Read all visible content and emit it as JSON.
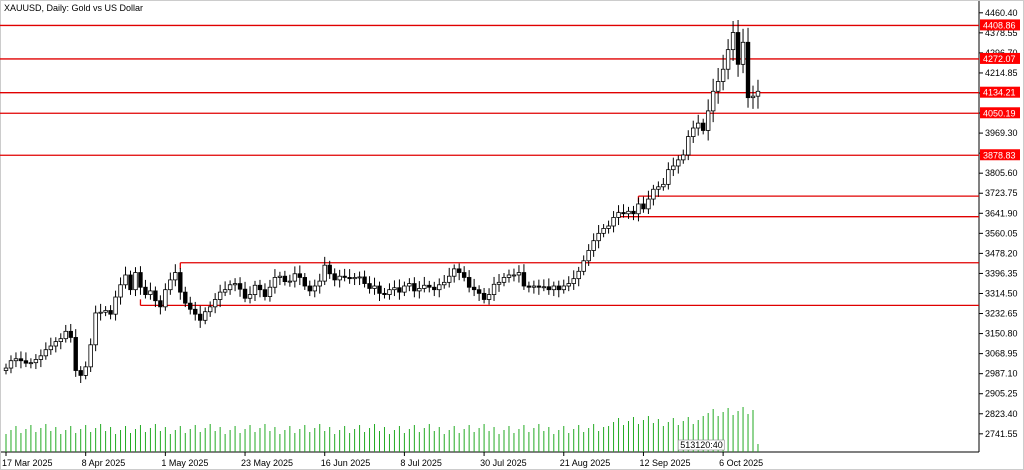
{
  "header": {
    "symbol": "XAUUSD, Daily:",
    "description": "Gold vs US Dollar"
  },
  "chart_data": {
    "type": "candlestick",
    "title": "XAUUSD, Daily:  Gold vs US Dollar",
    "ylim": [
      2700,
      4480
    ],
    "grid": false,
    "y_ticks": [
      4460.4,
      4378.55,
      4296.7,
      4214.85,
      4133.0,
      4051.15,
      3969.3,
      3887.45,
      3805.6,
      3723.75,
      3641.9,
      3560.05,
      3478.2,
      3396.35,
      3314.5,
      3232.65,
      3150.8,
      3068.95,
      2987.1,
      2905.25,
      2823.4,
      2741.55
    ],
    "y_tick_labels": [
      "4460.40",
      "4378.55",
      "4296.70",
      "4214.85",
      "4133.00",
      "4051.15",
      "3969.30",
      "3887.45",
      "3805.60",
      "3723.75",
      "3641.90",
      "3560.05",
      "3478.20",
      "3396.35",
      "3314.50",
      "3232.65",
      "3150.80",
      "3068.95",
      "2987.10",
      "2905.25",
      "2823.40",
      "2741.55"
    ],
    "x_tick_labels": [
      "17 Mar 2025",
      "8 Apr 2025",
      "1 May 2025",
      "23 May 2025",
      "16 Jun 2025",
      "8 Jul 2025",
      "30 Jul 2025",
      "21 Aug 2025",
      "12 Sep 2025",
      "6 Oct 2025"
    ],
    "x_tick_index": [
      0,
      16,
      32,
      48,
      64,
      80,
      96,
      112,
      128,
      144
    ],
    "closes": [
      3010,
      3040,
      3048,
      3040,
      3030,
      3032,
      3045,
      3060,
      3085,
      3100,
      3118,
      3130,
      3160,
      3135,
      3000,
      2980,
      3015,
      3105,
      3235,
      3238,
      3245,
      3230,
      3300,
      3350,
      3390,
      3330,
      3400,
      3340,
      3310,
      3325,
      3285,
      3260,
      3330,
      3370,
      3400,
      3320,
      3275,
      3250,
      3230,
      3205,
      3240,
      3260,
      3290,
      3320,
      3330,
      3350,
      3355,
      3332,
      3295,
      3310,
      3348,
      3330,
      3302,
      3340,
      3380,
      3385,
      3363,
      3365,
      3395,
      3380,
      3345,
      3325,
      3345,
      3365,
      3430,
      3395,
      3370,
      3385,
      3380,
      3375,
      3380,
      3382,
      3355,
      3335,
      3345,
      3315,
      3310,
      3330,
      3338,
      3320,
      3345,
      3355,
      3325,
      3335,
      3348,
      3340,
      3330,
      3350,
      3360,
      3385,
      3415,
      3400,
      3380,
      3340,
      3330,
      3315,
      3290,
      3310,
      3352,
      3360,
      3380,
      3390,
      3390,
      3400,
      3345,
      3340,
      3345,
      3340,
      3342,
      3330,
      3345,
      3330,
      3345,
      3355,
      3375,
      3405,
      3448,
      3490,
      3530,
      3560,
      3580,
      3590,
      3625,
      3645,
      3640,
      3650,
      3640,
      3680,
      3660,
      3700,
      3740,
      3750,
      3760,
      3820,
      3835,
      3860,
      3880,
      3955,
      3990,
      4010,
      3980,
      4060,
      4140,
      4180,
      4230,
      4310,
      4380,
      4250,
      4340,
      4114,
      4120,
      4140
    ],
    "opens": [
      3000,
      3010,
      3040,
      3048,
      3040,
      3030,
      3032,
      3045,
      3060,
      3085,
      3100,
      3118,
      3130,
      3160,
      3135,
      3000,
      2980,
      3015,
      3105,
      3235,
      3238,
      3245,
      3230,
      3300,
      3350,
      3390,
      3330,
      3400,
      3340,
      3310,
      3325,
      3285,
      3260,
      3330,
      3370,
      3400,
      3320,
      3275,
      3250,
      3230,
      3205,
      3240,
      3260,
      3290,
      3320,
      3330,
      3350,
      3355,
      3332,
      3295,
      3310,
      3348,
      3330,
      3302,
      3340,
      3380,
      3385,
      3363,
      3365,
      3395,
      3380,
      3345,
      3325,
      3345,
      3365,
      3430,
      3395,
      3370,
      3385,
      3380,
      3375,
      3380,
      3382,
      3355,
      3335,
      3345,
      3315,
      3310,
      3330,
      3338,
      3320,
      3345,
      3355,
      3325,
      3335,
      3348,
      3340,
      3330,
      3350,
      3360,
      3385,
      3415,
      3400,
      3380,
      3340,
      3330,
      3315,
      3290,
      3310,
      3352,
      3360,
      3380,
      3390,
      3390,
      3400,
      3345,
      3340,
      3345,
      3340,
      3342,
      3330,
      3345,
      3330,
      3345,
      3355,
      3375,
      3405,
      3448,
      3490,
      3530,
      3560,
      3580,
      3590,
      3625,
      3645,
      3640,
      3650,
      3640,
      3680,
      3660,
      3700,
      3740,
      3750,
      3760,
      3820,
      3835,
      3860,
      3880,
      3955,
      3990,
      4010,
      3980,
      4060,
      4140,
      4180,
      4230,
      4310,
      4380,
      4250,
      4340,
      4114,
      4120
    ],
    "horizontal_lines": [
      {
        "value": 4408.86,
        "label": "4408.86",
        "flag": true
      },
      {
        "value": 4272.07,
        "label": "4272.07",
        "flag": true
      },
      {
        "value": 4134.21,
        "label": "4134.21",
        "flag": true
      },
      {
        "value": 4050.19,
        "label": "4050.19",
        "flag": true
      },
      {
        "value": 3878.83,
        "label": "3878.83",
        "flag": true
      },
      {
        "value": 3712.0,
        "label": "",
        "flag": false,
        "from_index": 127
      },
      {
        "value": 3628.0,
        "label": "",
        "flag": false,
        "from_index": 123
      },
      {
        "value": 3440.0,
        "label": "",
        "flag": false,
        "from_index": 35
      },
      {
        "value": 3266.0,
        "label": "",
        "flag": false,
        "from_index": 27
      }
    ],
    "volume_label": "513120:40",
    "colors": {
      "candle": "#000000",
      "level_line": "#e00000",
      "flag_bg": "#ff0000",
      "volume": "#22aa22",
      "axis": "#000000"
    }
  }
}
